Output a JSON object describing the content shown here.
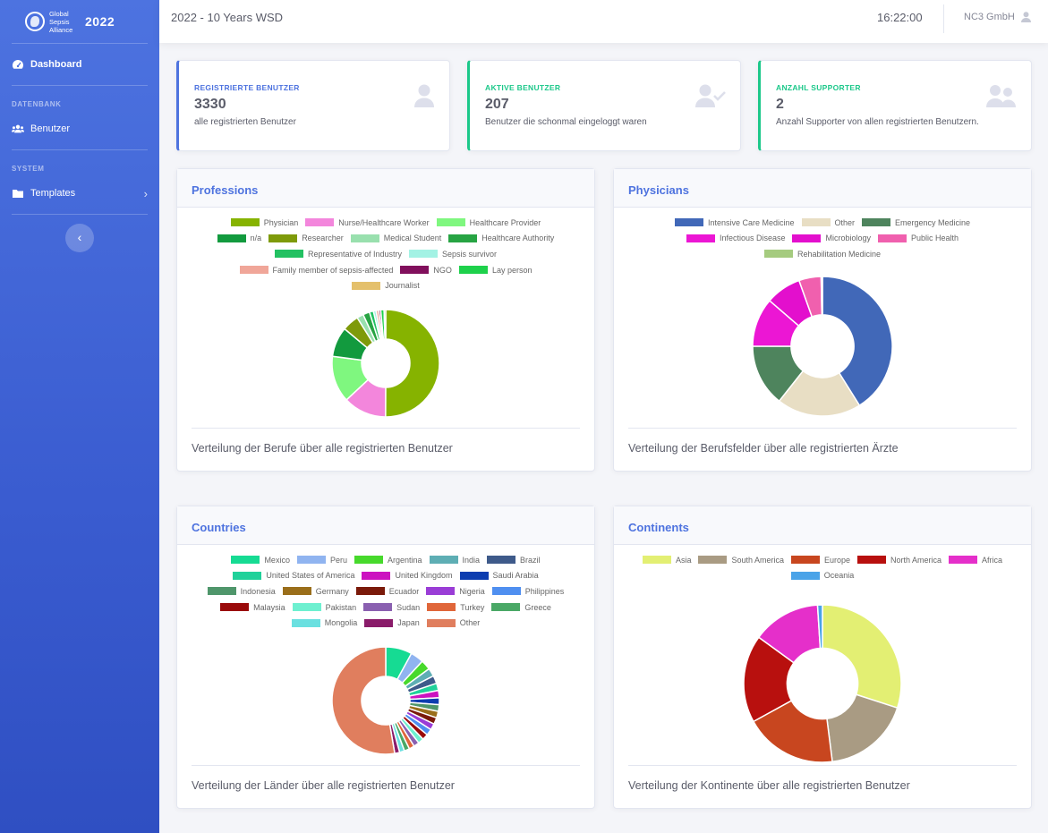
{
  "sidebar": {
    "brand_line1": "Global",
    "brand_line2": "Sepsis",
    "brand_line3": "Alliance",
    "year": "2022",
    "dashboard_label": "Dashboard",
    "heading_datenbank": "DATENBANK",
    "benutzer_label": "Benutzer",
    "heading_system": "SYSTEM",
    "templates_label": "Templates",
    "toggle_glyph": "‹"
  },
  "topbar": {
    "title": "2022 - 10 Years WSD",
    "time": "16:22:00",
    "user": "NC3 GmbH"
  },
  "stats": [
    {
      "label": "REGISTRIERTE BENUTZER",
      "value": "3330",
      "description": "alle registrierten Benutzer",
      "icon": "user-icon",
      "color": "#4e73df"
    },
    {
      "label": "AKTIVE BENUTZER",
      "value": "207",
      "description": "Benutzer die schonmal eingeloggt waren",
      "icon": "user-check-icon",
      "color": "#1cc88a"
    },
    {
      "label": "ANZAHL SUPPORTER",
      "value": "2",
      "description": "Anzahl Supporter von allen registrierten Benutzern.",
      "icon": "users-icon",
      "color": "#1cc88a"
    }
  ],
  "cards": {
    "professions": {
      "title": "Professions",
      "caption": "Verteilung der Berufe über alle registrierten Benutzer"
    },
    "physicians": {
      "title": "Physicians",
      "caption": "Verteilung der Berufsfelder über alle registrierten Ärzte"
    },
    "countries": {
      "title": "Countries",
      "caption": "Verteilung der Länder über alle registrierten Benutzer"
    },
    "continents": {
      "title": "Continents",
      "caption": "Verteilung der Kontinente über alle registrierten Benutzer"
    }
  },
  "chart_data": [
    {
      "id": "professions",
      "type": "pie",
      "legend_rows": [
        [
          0,
          1,
          2
        ],
        [
          3,
          4,
          5,
          6
        ],
        [
          7,
          8
        ],
        [
          9,
          10,
          11
        ],
        [
          12
        ]
      ],
      "labels": [
        "Physician",
        "Nurse/Healthcare Worker",
        "Healthcare Provider",
        "n/a",
        "Researcher",
        "Medical Student",
        "Healthcare Authority",
        "Representative of Industry",
        "Sepsis survivor",
        "Family member of sepsis-affected",
        "NGO",
        "Lay person",
        "Journalist"
      ],
      "values": [
        50,
        13,
        14,
        9,
        5,
        2,
        2,
        1.2,
        0.8,
        0.8,
        0.6,
        1.0,
        0.5
      ],
      "colors": [
        "#86b300",
        "#f386dc",
        "#7ff77f",
        "#129a3e",
        "#7e9a0a",
        "#99e0ae",
        "#27a443",
        "#23c162",
        "#a3f2e4",
        "#f0a699",
        "#810f5c",
        "#1ed14b",
        "#e4c06c"
      ]
    },
    {
      "id": "physicians",
      "type": "pie",
      "legend_rows": [
        [
          0,
          1,
          2
        ],
        [
          3,
          4,
          5
        ],
        [
          6
        ]
      ],
      "labels": [
        "Intensive Care Medicine",
        "Other",
        "Emergency Medicine",
        "Infectious Disease",
        "Microbiology",
        "Public Health",
        "Rehabilitation Medicine"
      ],
      "values": [
        40,
        19,
        14,
        11,
        8,
        5,
        0.3
      ],
      "colors": [
        "#4168b8",
        "#e8dec4",
        "#4e845d",
        "#ec16d4",
        "#e30fcd",
        "#f060ae",
        "#a5cb7f"
      ]
    },
    {
      "id": "countries",
      "type": "pie",
      "legend_rows": [
        [
          0,
          1,
          2,
          3,
          4
        ],
        [
          5,
          6,
          7
        ],
        [
          8,
          9,
          10,
          11,
          12
        ],
        [
          13,
          14,
          15,
          16,
          17
        ],
        [
          18,
          19,
          20
        ]
      ],
      "labels": [
        "Mexico",
        "Peru",
        "Argentina",
        "India",
        "Brazil",
        "United States of America",
        "United Kingdom",
        "Saudi Arabia",
        "Indonesia",
        "Germany",
        "Ecuador",
        "Nigeria",
        "Philippines",
        "Malaysia",
        "Pakistan",
        "Sudan",
        "Turkey",
        "Greece",
        "Mongolia",
        "Japan",
        "Other"
      ],
      "values": [
        8,
        4,
        3,
        2.5,
        2.4,
        2.2,
        2.2,
        2.1,
        2,
        2,
        2,
        1.9,
        1.9,
        1.8,
        1.7,
        1.7,
        1.6,
        1.6,
        1.5,
        1.5,
        53
      ],
      "colors": [
        "#16db93",
        "#90b4f0",
        "#47d92c",
        "#5eaeb4",
        "#3e5a8a",
        "#20d19a",
        "#cc12c0",
        "#0d3db0",
        "#4f966b",
        "#9a6e1a",
        "#7a1a0a",
        "#9a3dd6",
        "#4f8ff0",
        "#9a0a0a",
        "#6ef0d0",
        "#8a60b0",
        "#e0663a",
        "#4aa866",
        "#6ae0e0",
        "#8a1c6a",
        "#e07e5e"
      ]
    },
    {
      "id": "continents",
      "type": "pie",
      "legend_rows": [
        [
          0,
          1,
          2,
          3,
          4
        ],
        [
          5
        ]
      ],
      "labels": [
        "Asia",
        "South America",
        "Europe",
        "North America",
        "Africa",
        "Oceania"
      ],
      "values": [
        30,
        18,
        19,
        18,
        14,
        1
      ],
      "colors": [
        "#e3ef73",
        "#a99b83",
        "#c8461f",
        "#b8100e",
        "#e52fca",
        "#4aa3e8"
      ]
    }
  ]
}
